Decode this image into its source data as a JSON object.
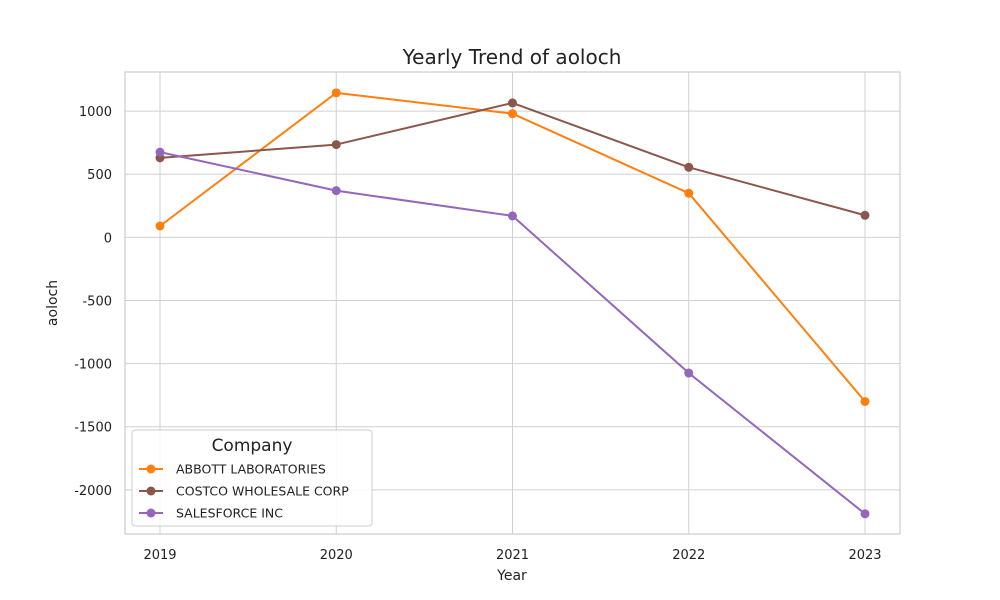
{
  "chart_data": {
    "type": "line",
    "title": "Yearly Trend of aoloch",
    "xlabel": "Year",
    "ylabel": "aoloch",
    "x": [
      "2019",
      "2020",
      "2021",
      "2022",
      "2023"
    ],
    "yticks": [
      "-2000",
      "-1500",
      "-1000",
      "-500",
      "0",
      "500",
      "1000"
    ],
    "ylim": [
      -2350,
      1310
    ],
    "grid": true,
    "legend": {
      "title": "Company",
      "placement": "lower-left"
    },
    "series": [
      {
        "name": "ABBOTT LABORATORIES",
        "color": "#ff7f0e",
        "values": [
          90,
          1145,
          980,
          350,
          -1300
        ]
      },
      {
        "name": "COSTCO WHOLESALE CORP",
        "color": "#8c564b",
        "values": [
          630,
          735,
          1065,
          555,
          175
        ]
      },
      {
        "name": "SALESFORCE INC",
        "color": "#9467bd",
        "values": [
          675,
          370,
          170,
          -1075,
          -2190
        ]
      }
    ]
  }
}
